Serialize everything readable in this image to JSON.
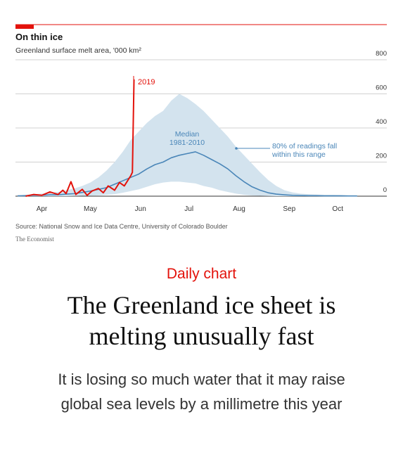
{
  "chart_data": {
    "type": "area-line",
    "title": "On thin ice",
    "subtitle": "Greenland surface melt area, '000 km²",
    "source": "Source: National Snow and Ice Data Centre, University of Colorado Boulder",
    "credit": "The Economist",
    "xlim": [
      0,
      214
    ],
    "xticks": [
      {
        "value": 15,
        "label": "Apr"
      },
      {
        "value": 45,
        "label": "May"
      },
      {
        "value": 76,
        "label": "Jun"
      },
      {
        "value": 106,
        "label": "Jul"
      },
      {
        "value": 137,
        "label": "Aug"
      },
      {
        "value": 168,
        "label": "Sep"
      },
      {
        "value": 198,
        "label": "Oct"
      }
    ],
    "ylim": [
      0,
      800
    ],
    "yticks": [
      0,
      200,
      400,
      600,
      800
    ],
    "grid": true,
    "band": {
      "name": "80% of readings fall within this range",
      "color": "#d3e3ee",
      "label_color": "#4a86b8",
      "x": [
        0,
        5,
        10,
        15,
        20,
        25,
        30,
        35,
        40,
        45,
        50,
        55,
        60,
        65,
        70,
        75,
        80,
        85,
        90,
        95,
        100,
        105,
        110,
        115,
        120,
        125,
        130,
        135,
        140,
        145,
        150,
        155,
        160,
        165,
        170,
        175,
        180,
        185,
        190,
        195,
        200,
        205,
        210
      ],
      "lower": [
        0,
        0,
        0,
        0,
        0,
        0,
        0,
        1,
        2,
        3,
        5,
        8,
        12,
        20,
        30,
        40,
        55,
        70,
        80,
        85,
        85,
        80,
        75,
        60,
        50,
        35,
        25,
        15,
        8,
        4,
        2,
        1,
        0,
        0,
        0,
        0,
        0,
        0,
        0,
        0,
        0,
        0,
        0
      ],
      "upper": [
        5,
        8,
        12,
        15,
        20,
        25,
        35,
        45,
        60,
        80,
        110,
        150,
        200,
        260,
        330,
        380,
        430,
        470,
        500,
        560,
        600,
        575,
        540,
        500,
        450,
        400,
        350,
        290,
        240,
        190,
        140,
        95,
        60,
        35,
        22,
        15,
        12,
        10,
        8,
        8,
        7,
        6,
        6
      ]
    },
    "series": [
      {
        "name": "Median 1981-2010",
        "color": "#4a86b8",
        "x": [
          0,
          5,
          10,
          15,
          20,
          25,
          30,
          35,
          40,
          45,
          50,
          55,
          60,
          65,
          70,
          75,
          80,
          85,
          90,
          95,
          100,
          105,
          110,
          115,
          120,
          125,
          130,
          135,
          140,
          145,
          150,
          155,
          160,
          165,
          170,
          175,
          180,
          185,
          190,
          195,
          200,
          205,
          210
        ],
        "values": [
          2,
          3,
          5,
          5,
          8,
          8,
          12,
          15,
          22,
          30,
          40,
          50,
          70,
          90,
          110,
          130,
          160,
          185,
          200,
          225,
          240,
          250,
          260,
          240,
          215,
          190,
          160,
          120,
          85,
          55,
          35,
          20,
          12,
          8,
          5,
          4,
          3,
          3,
          2,
          2,
          2,
          1,
          1
        ]
      },
      {
        "name": "2019",
        "color": "#e3120b",
        "x": [
          5,
          10,
          15,
          20,
          25,
          28,
          30,
          33,
          36,
          40,
          43,
          46,
          50,
          53,
          56,
          60,
          63,
          66,
          70,
          71,
          72
        ],
        "values": [
          0,
          10,
          5,
          25,
          10,
          35,
          15,
          85,
          10,
          40,
          5,
          30,
          45,
          20,
          60,
          35,
          80,
          60,
          120,
          140,
          685
        ]
      }
    ]
  },
  "article": {
    "kicker": "Daily chart",
    "headline": "The Greenland ice sheet is melting unusually fast",
    "standfirst": "It is losing so much water that it may raise global sea levels by a millimetre this year"
  }
}
